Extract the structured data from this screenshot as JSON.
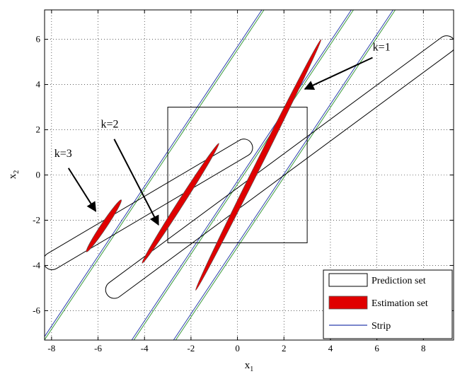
{
  "chart_data": {
    "type": "line",
    "title": "",
    "xlabel": "x",
    "xlabel_sub": "1",
    "ylabel": "x",
    "ylabel_sub": "2",
    "xlim": [
      -8.3,
      9.3
    ],
    "ylim": [
      -7.3,
      7.3
    ],
    "xticks": [
      -8,
      -6,
      -4,
      -2,
      0,
      2,
      4,
      6,
      8
    ],
    "yticks": [
      -6,
      -4,
      -2,
      0,
      2,
      4,
      6
    ],
    "grid": true,
    "grid_style": "dotted",
    "legend_position": "bottom-right",
    "legend": [
      {
        "label": "Prediction set",
        "kind": "prediction"
      },
      {
        "label": "Estimation set",
        "kind": "estimation"
      },
      {
        "label": "Strip",
        "kind": "strip"
      }
    ],
    "colors": {
      "estimation_fill": "#e00000",
      "estimation_edge": "#555555",
      "strip_blue": "#2b3fae",
      "strip_green": "#3a9a3a",
      "prediction_edge": "#000000",
      "grid": "#000000"
    },
    "strip_lines": [
      {
        "x": [
          -8.4,
          1.05
        ],
        "y": [
          -7.3,
          7.3
        ]
      },
      {
        "x": [
          -4.55,
          4.9
        ],
        "y": [
          -7.3,
          7.3
        ]
      },
      {
        "x": [
          -2.75,
          6.7
        ],
        "y": [
          -7.3,
          7.3
        ]
      }
    ],
    "prediction_sets": [
      {
        "shape": "box",
        "x": [
          -3,
          3
        ],
        "y": [
          -3,
          3
        ]
      },
      {
        "shape": "band",
        "x": [
          -5.6,
          9.3
        ],
        "y": [
          -5.3,
          6.0
        ],
        "half_width": 0.7
      },
      {
        "shape": "band",
        "x": [
          -8.3,
          0.6
        ],
        "y": [
          -4.0,
          1.4
        ],
        "half_width": 0.7
      }
    ],
    "estimation_sets": [
      {
        "k": 1,
        "x": [
          -1.8,
          3.6
        ],
        "y": [
          -5.1,
          6.0
        ]
      },
      {
        "k": 2,
        "x": [
          -4.1,
          -0.8
        ],
        "y": [
          -3.9,
          1.4
        ]
      },
      {
        "k": 3,
        "x": [
          -6.5,
          -5.0
        ],
        "y": [
          -3.4,
          -1.1
        ]
      }
    ],
    "annotations": [
      {
        "text": "k=1",
        "x": 6.2,
        "y": 5.5,
        "arrow_to_x": 2.9,
        "arrow_to_y": 3.8
      },
      {
        "text": "k=2",
        "x": -5.5,
        "y": 2.1,
        "arrow_to_x": -3.4,
        "arrow_to_y": -2.2
      },
      {
        "text": "k=3",
        "x": -7.5,
        "y": 0.8,
        "arrow_to_x": -6.1,
        "arrow_to_y": -1.6
      }
    ]
  }
}
